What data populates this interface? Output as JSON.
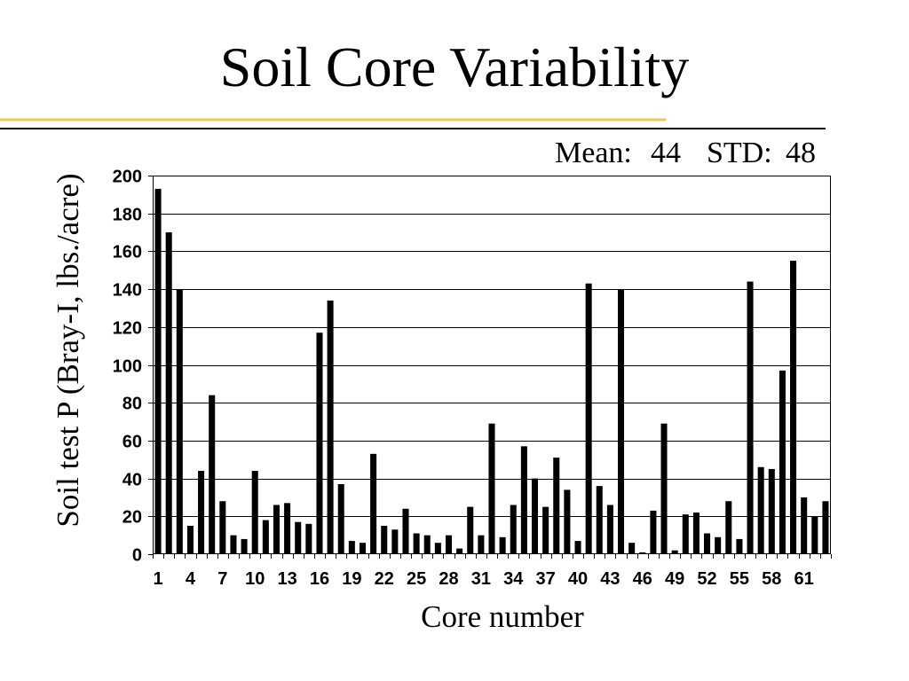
{
  "slide": {
    "title": "Soil Core Variability",
    "stats": {
      "mean_label": "Mean:",
      "mean_value": "44",
      "std_label": "STD:",
      "std_value": "48"
    }
  },
  "colors": {
    "accent_rule": "#F0C850",
    "title_rule": "#000000",
    "bars": "#000000",
    "gridlines": "#000000",
    "axes": "#000000"
  },
  "chart_data": {
    "type": "bar",
    "xlabel": "Core number",
    "ylabel": "Soil test P (Bray-I, lbs./acre)",
    "categories": [
      1,
      2,
      3,
      4,
      5,
      6,
      7,
      8,
      9,
      10,
      11,
      12,
      13,
      14,
      15,
      16,
      17,
      18,
      19,
      20,
      21,
      22,
      23,
      24,
      25,
      26,
      27,
      28,
      29,
      30,
      31,
      32,
      33,
      34,
      35,
      36,
      37,
      38,
      39,
      40,
      41,
      42,
      43,
      44,
      45,
      46,
      47,
      48,
      49,
      50,
      51,
      52,
      53,
      54,
      55,
      56,
      57,
      58,
      59,
      60,
      61,
      62,
      63
    ],
    "values": [
      193,
      170,
      140,
      15,
      44,
      84,
      28,
      10,
      8,
      44,
      18,
      26,
      27,
      17,
      16,
      117,
      134,
      37,
      7,
      6,
      53,
      15,
      13,
      24,
      11,
      10,
      6,
      10,
      3,
      25,
      10,
      69,
      9,
      26,
      57,
      40,
      25,
      51,
      34,
      7,
      143,
      36,
      26,
      140,
      6,
      1,
      23,
      69,
      2,
      21,
      22,
      11,
      9,
      28,
      8,
      144,
      46,
      45,
      97,
      155,
      30,
      20,
      28
    ],
    "ylim": [
      0,
      200
    ],
    "yticks": [
      0,
      20,
      40,
      60,
      80,
      100,
      120,
      140,
      160,
      180,
      200
    ],
    "xticks": [
      1,
      4,
      7,
      10,
      13,
      16,
      19,
      22,
      25,
      28,
      31,
      34,
      37,
      40,
      43,
      46,
      49,
      52,
      55,
      58,
      61
    ],
    "grid": true
  }
}
